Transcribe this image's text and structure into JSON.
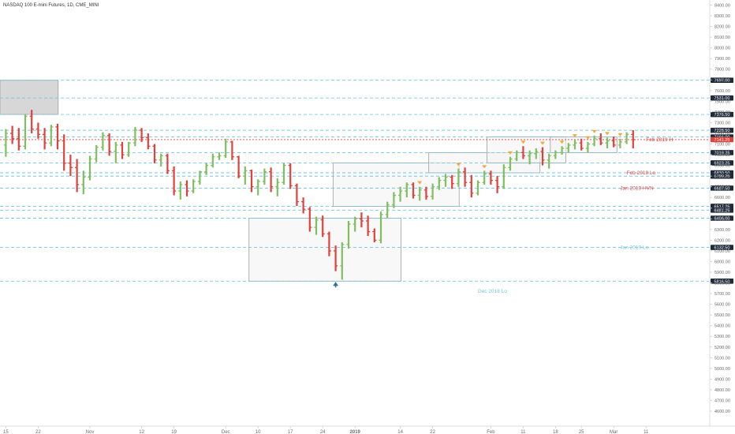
{
  "title": "NASDAQ 100 E-mini Futures, 1D, CME_MINI",
  "colors": {
    "up": "#7fbf5e",
    "down": "#e0413b",
    "level_line": "#74c6e4",
    "level_tag_bg": "#1f2a3a",
    "current_tag_bg": "#e0413b",
    "zone_fill": "#f3f3f3",
    "zone_dark_fill": "#d3d3d3",
    "zone_border": "#9e9e9e",
    "marker": "#f2a93b",
    "arrow": "#2e6f9e"
  },
  "chart_data": {
    "type": "ohlc",
    "title": "NASDAQ 100 E-mini Futures, 1D, CME_MINI",
    "ylim": [
      4600,
      8500
    ],
    "y_ticks": [
      8400,
      8300,
      8200,
      8100,
      8000,
      7900,
      7800,
      7700,
      7600,
      7500,
      7400,
      7300,
      7200,
      7100,
      7000,
      6900,
      6800,
      6700,
      6600,
      6500,
      6400,
      6300,
      6200,
      6100,
      6000,
      5900,
      5800,
      5700,
      5600,
      5500,
      5400,
      5300,
      5200,
      5100,
      5000,
      4900,
      4800,
      4700,
      4600
    ],
    "x_tick_labels": [
      {
        "label": "15",
        "i": 0
      },
      {
        "label": "22",
        "i": 5
      },
      {
        "label": "Nov",
        "i": 13
      },
      {
        "label": "12",
        "i": 21
      },
      {
        "label": "19",
        "i": 26
      },
      {
        "label": "Dec",
        "i": 34
      },
      {
        "label": "10",
        "i": 39
      },
      {
        "label": "17",
        "i": 44
      },
      {
        "label": "24",
        "i": 49
      },
      {
        "label": "2019",
        "i": 54
      },
      {
        "label": "14",
        "i": 61
      },
      {
        "label": "22",
        "i": 66
      },
      {
        "label": "Feb",
        "i": 75
      },
      {
        "label": "11",
        "i": 80
      },
      {
        "label": "18",
        "i": 85
      },
      {
        "label": "25",
        "i": 89
      },
      {
        "label": "Mar",
        "i": 94
      },
      {
        "label": "11",
        "i": 99
      }
    ],
    "bars": [
      [
        7090,
        7240,
        6980,
        7200
      ],
      [
        7200,
        7270,
        7100,
        7150
      ],
      [
        7150,
        7250,
        7040,
        7080
      ],
      [
        7080,
        7380,
        7050,
        7360
      ],
      [
        7360,
        7420,
        7200,
        7240
      ],
      [
        7240,
        7300,
        7150,
        7190
      ],
      [
        7190,
        7250,
        7050,
        7110
      ],
      [
        7110,
        7280,
        7080,
        7260
      ],
      [
        7260,
        7290,
        7050,
        7130
      ],
      [
        7130,
        7190,
        6850,
        6920
      ],
      [
        6920,
        7000,
        6800,
        6880
      ],
      [
        6880,
        6960,
        6650,
        6720
      ],
      [
        6720,
        6850,
        6630,
        6790
      ],
      [
        6790,
        6990,
        6760,
        6960
      ],
      [
        6960,
        7090,
        6930,
        7070
      ],
      [
        7070,
        7210,
        7040,
        7180
      ],
      [
        7180,
        7200,
        6990,
        7030
      ],
      [
        7030,
        7120,
        6920,
        7090
      ],
      [
        7090,
        7120,
        6960,
        7000
      ],
      [
        7000,
        7120,
        6980,
        7110
      ],
      [
        7110,
        7260,
        7080,
        7230
      ],
      [
        7230,
        7250,
        7120,
        7160
      ],
      [
        7160,
        7200,
        7050,
        7080
      ],
      [
        7080,
        7100,
        6920,
        6950
      ],
      [
        6950,
        7010,
        6890,
        6990
      ],
      [
        6990,
        7010,
        6820,
        6850
      ],
      [
        6850,
        6890,
        6620,
        6660
      ],
      [
        6660,
        6750,
        6580,
        6720
      ],
      [
        6720,
        6760,
        6610,
        6660
      ],
      [
        6660,
        6770,
        6640,
        6750
      ],
      [
        6750,
        6850,
        6720,
        6840
      ],
      [
        6840,
        6920,
        6810,
        6900
      ],
      [
        6900,
        7010,
        6880,
        6980
      ],
      [
        6980,
        7020,
        6950,
        6990
      ],
      [
        6990,
        7150,
        6970,
        7120
      ],
      [
        7120,
        7130,
        6950,
        6980
      ],
      [
        6980,
        6990,
        6780,
        6800
      ],
      [
        6800,
        6890,
        6720,
        6850
      ],
      [
        6850,
        6860,
        6650,
        6700
      ],
      [
        6700,
        6770,
        6620,
        6750
      ],
      [
        6750,
        6870,
        6720,
        6840
      ],
      [
        6840,
        6880,
        6650,
        6700
      ],
      [
        6700,
        6780,
        6610,
        6740
      ],
      [
        6740,
        6920,
        6720,
        6900
      ],
      [
        6900,
        6920,
        6680,
        6710
      ],
      [
        6710,
        6730,
        6520,
        6560
      ],
      [
        6560,
        6600,
        6450,
        6490
      ],
      [
        6490,
        6510,
        6280,
        6320
      ],
      [
        6320,
        6420,
        6250,
        6390
      ],
      [
        6390,
        6430,
        6230,
        6260
      ],
      [
        6260,
        6280,
        6050,
        6100
      ],
      [
        6100,
        6150,
        5910,
        5960
      ],
      [
        5960,
        6180,
        5830,
        6160
      ],
      [
        6160,
        6380,
        6120,
        6350
      ],
      [
        6350,
        6420,
        6280,
        6400
      ],
      [
        6400,
        6460,
        6320,
        6380
      ],
      [
        6380,
        6430,
        6240,
        6280
      ],
      [
        6280,
        6310,
        6180,
        6200
      ],
      [
        6200,
        6470,
        6170,
        6440
      ],
      [
        6440,
        6560,
        6410,
        6530
      ],
      [
        6530,
        6650,
        6500,
        6620
      ],
      [
        6620,
        6700,
        6560,
        6660
      ],
      [
        6660,
        6740,
        6600,
        6720
      ],
      [
        6720,
        6740,
        6590,
        6620
      ],
      [
        6620,
        6700,
        6570,
        6670
      ],
      [
        6670,
        6700,
        6580,
        6610
      ],
      [
        6610,
        6730,
        6580,
        6700
      ],
      [
        6700,
        6790,
        6670,
        6760
      ],
      [
        6760,
        6820,
        6700,
        6790
      ],
      [
        6790,
        6810,
        6680,
        6730
      ],
      [
        6730,
        6870,
        6700,
        6840
      ],
      [
        6840,
        6880,
        6700,
        6740
      ],
      [
        6740,
        6810,
        6600,
        6640
      ],
      [
        6640,
        6760,
        6620,
        6740
      ],
      [
        6740,
        6850,
        6720,
        6820
      ],
      [
        6820,
        6850,
        6720,
        6760
      ],
      [
        6760,
        6800,
        6640,
        6700
      ],
      [
        6700,
        6910,
        6680,
        6880
      ],
      [
        6880,
        6980,
        6850,
        6960
      ],
      [
        6960,
        7040,
        6940,
        7020
      ],
      [
        7020,
        7080,
        6960,
        6990
      ],
      [
        6990,
        7040,
        6910,
        7010
      ],
      [
        7010,
        7060,
        6960,
        7030
      ],
      [
        7030,
        7070,
        6900,
        6950
      ],
      [
        6950,
        7010,
        6870,
        6990
      ],
      [
        6990,
        7040,
        6960,
        7020
      ],
      [
        7020,
        7080,
        7000,
        7060
      ],
      [
        7060,
        7110,
        7020,
        7090
      ],
      [
        7090,
        7140,
        7050,
        7110
      ],
      [
        7110,
        7150,
        7040,
        7060
      ],
      [
        7060,
        7120,
        7020,
        7100
      ],
      [
        7100,
        7180,
        7080,
        7150
      ],
      [
        7150,
        7200,
        7090,
        7110
      ],
      [
        7110,
        7160,
        7060,
        7130
      ],
      [
        7130,
        7170,
        7070,
        7090
      ],
      [
        7090,
        7150,
        7060,
        7120
      ],
      [
        7120,
        7210,
        7100,
        7190
      ],
      [
        7190,
        7230,
        7060,
        7141
      ]
    ],
    "levels": [
      {
        "value": 7697.0,
        "tag": "7697.00"
      },
      {
        "value": 7531.0,
        "tag": "7531.00"
      },
      {
        "value": 7376.5,
        "tag": "7376.50"
      },
      {
        "value": 7228.5,
        "tag": "7228.50"
      },
      {
        "value": 7166.0,
        "tag": "7166.00"
      },
      {
        "value": 7141.25,
        "tag": "7141.25",
        "current": true
      },
      {
        "value": 7019.25,
        "tag": "7019.25"
      },
      {
        "value": 6923.25,
        "tag": "6923.25"
      },
      {
        "value": 6830.5,
        "tag": "6830.50"
      },
      {
        "value": 6799.25,
        "tag": "6799.25"
      },
      {
        "value": 6687.5,
        "tag": "6687.50"
      },
      {
        "value": 6517.25,
        "tag": "6517.25"
      },
      {
        "value": 6481.25,
        "tag": "6481.25"
      },
      {
        "value": 6406.0,
        "tag": "6406.00"
      },
      {
        "value": 6132.5,
        "tag": "6132.50"
      },
      {
        "value": 5816.5,
        "tag": "5816.50"
      }
    ],
    "annotations": [
      {
        "text": "Feb 2019 H",
        "value": 7141.25,
        "color": "#e0413b",
        "at_i": 99
      },
      {
        "text": "Feb 2019 Lo",
        "value": 6830.5,
        "color": "#e0413b",
        "at_i": 96
      },
      {
        "text": "Jan 2019 HVN",
        "value": 6687.5,
        "color": "#e0413b",
        "at_i": 95
      },
      {
        "text": "Jan 2019 Lo",
        "value": 6132.5,
        "color": "#74c6e4",
        "at_i": 95
      },
      {
        "text": "Dec 2018 Lo",
        "value": 5726.0,
        "color": "#74c6e4",
        "at_i": 73
      }
    ],
    "zones": [
      {
        "i0": -1.6,
        "i1": 8.1,
        "top": 7697.0,
        "bottom": 7376.5,
        "dark": true
      },
      {
        "i0": 37.6,
        "i1": 61.1,
        "top": 6406.0,
        "bottom": 5816.5,
        "dark": false
      },
      {
        "i0": 50.6,
        "i1": 70.1,
        "top": 6923.25,
        "bottom": 6517.25,
        "dark": false
      },
      {
        "i0": 65.4,
        "i1": 82.6,
        "top": 7019.25,
        "bottom": 6830.5,
        "dark": false
      },
      {
        "i0": 74.4,
        "i1": 86.6,
        "top": 7166.0,
        "bottom": 6923.25,
        "dark": false
      },
      {
        "i0": 84.2,
        "i1": 94.5,
        "top": 7166.0,
        "bottom": 7019.25,
        "dark": false
      }
    ],
    "markers_above": [
      64,
      70,
      74,
      78,
      80,
      83,
      86,
      88,
      90,
      91,
      93,
      95
    ],
    "arrow_up_at": {
      "i": 51,
      "value": 5816.5
    }
  }
}
